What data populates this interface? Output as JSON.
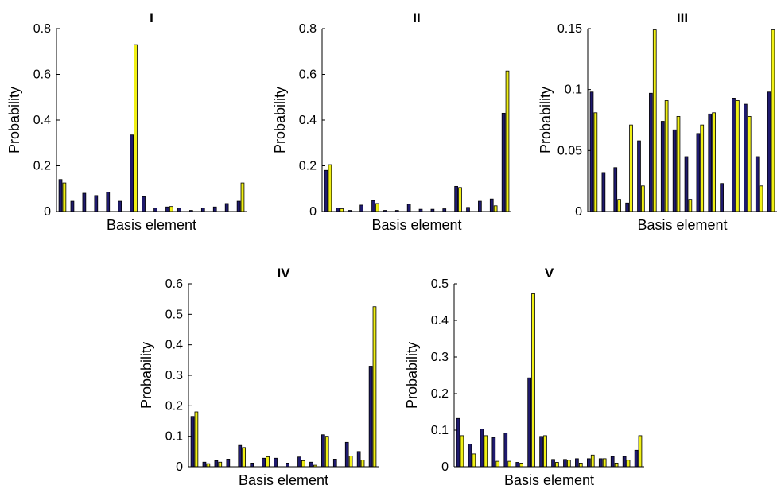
{
  "colors": {
    "series1": "#1f1a6e",
    "series2": "#f0f016"
  },
  "chart_data": [
    {
      "type": "bar",
      "title": "I",
      "xlabel": "Basis element",
      "ylabel": "Probability",
      "ylim": [
        0,
        0.8
      ],
      "yticks": [
        "0",
        "0.2",
        "0.4",
        "0.6",
        "0.8"
      ],
      "series": [
        {
          "values": [
            0.14,
            0.045,
            0.08,
            0.07,
            0.085,
            0.045,
            0.335,
            0.065,
            0.015,
            0.02,
            0.015,
            0.005,
            0.015,
            0.02,
            0.035,
            0.045
          ]
        },
        {
          "values": [
            0.125,
            0,
            0,
            0,
            0,
            0,
            0.73,
            0,
            0,
            0.022,
            0,
            0,
            0,
            0,
            0,
            0.125
          ]
        }
      ]
    },
    {
      "type": "bar",
      "title": "II",
      "xlabel": "Basis element",
      "ylabel": "Probability",
      "ylim": [
        0,
        0.8
      ],
      "yticks": [
        "0",
        "0.2",
        "0.4",
        "0.6",
        "0.8"
      ],
      "series": [
        {
          "values": [
            0.18,
            0.015,
            0.005,
            0.028,
            0.048,
            0.005,
            0.005,
            0.032,
            0.01,
            0.01,
            0.012,
            0.11,
            0.018,
            0.045,
            0.055,
            0.43
          ]
        },
        {
          "values": [
            0.205,
            0.012,
            0,
            0,
            0.035,
            0,
            0,
            0,
            0,
            0,
            0,
            0.105,
            0,
            0,
            0.025,
            0.615
          ]
        }
      ]
    },
    {
      "type": "bar",
      "title": "III",
      "xlabel": "Basis element",
      "ylabel": "Probability",
      "ylim": [
        0,
        0.15
      ],
      "yticks": [
        "0",
        "0.05",
        "0.1",
        "0.15"
      ],
      "series": [
        {
          "values": [
            0.098,
            0.032,
            0.036,
            0.007,
            0.058,
            0.097,
            0.074,
            0.067,
            0.045,
            0.064,
            0.08,
            0.023,
            0.093,
            0.088,
            0.045,
            0.098
          ]
        },
        {
          "values": [
            0.081,
            0,
            0.01,
            0.071,
            0.021,
            0.149,
            0.091,
            0.078,
            0.01,
            0.071,
            0.081,
            0,
            0.091,
            0.078,
            0.021,
            0.149
          ]
        }
      ]
    },
    {
      "type": "bar",
      "title": "IV",
      "xlabel": "Basis element",
      "ylabel": "Probability",
      "ylim": [
        0,
        0.6
      ],
      "yticks": [
        "0",
        "0.1",
        "0.2",
        "0.3",
        "0.4",
        "0.5",
        "0.6"
      ],
      "series": [
        {
          "values": [
            0.165,
            0.015,
            0.02,
            0.025,
            0.07,
            0.012,
            0.028,
            0.028,
            0.012,
            0.032,
            0.015,
            0.105,
            0.025,
            0.08,
            0.05,
            0.33
          ]
        },
        {
          "values": [
            0.18,
            0.01,
            0.015,
            0,
            0.063,
            0,
            0.033,
            0,
            0,
            0.02,
            0.005,
            0.1,
            0,
            0.035,
            0.022,
            0.525
          ]
        }
      ]
    },
    {
      "type": "bar",
      "title": "V",
      "xlabel": "Basis element",
      "ylabel": "Probability",
      "ylim": [
        0,
        0.5
      ],
      "yticks": [
        "0",
        "0.1",
        "0.2",
        "0.3",
        "0.4",
        "0.5"
      ],
      "series": [
        {
          "values": [
            0.132,
            0.062,
            0.103,
            0.08,
            0.092,
            0.012,
            0.243,
            0.083,
            0.02,
            0.02,
            0.022,
            0.022,
            0.022,
            0.028,
            0.028,
            0.045
          ]
        },
        {
          "values": [
            0.085,
            0.035,
            0.085,
            0.015,
            0.015,
            0.01,
            0.473,
            0.085,
            0.012,
            0.018,
            0.01,
            0.032,
            0.022,
            0.01,
            0.018,
            0.085
          ]
        }
      ]
    }
  ]
}
